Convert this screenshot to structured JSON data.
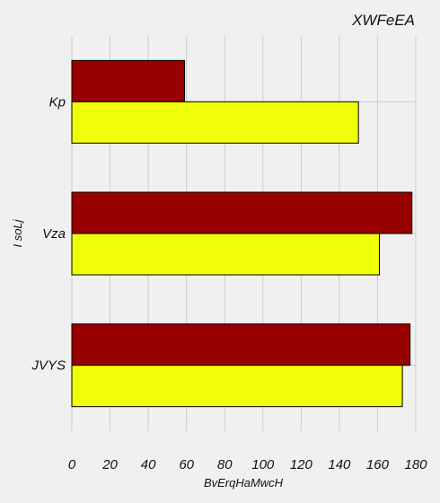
{
  "chart_data": {
    "type": "bar",
    "orientation": "horizontal",
    "title": "XWFeEA",
    "xlabel": "BvErqHaMwcH",
    "ylabel": "I soLj",
    "categories": [
      "JVYS",
      "Vza",
      "Kp"
    ],
    "series": [
      {
        "color": "#990000",
        "values": [
          177,
          178,
          59
        ]
      },
      {
        "color": "#f0ff0a",
        "values": [
          173,
          161,
          150
        ]
      }
    ],
    "xlim": [
      0,
      180
    ],
    "xticks": [
      0,
      20,
      40,
      60,
      80,
      100,
      120,
      140,
      160,
      180
    ],
    "grid": true,
    "legend": "none"
  }
}
